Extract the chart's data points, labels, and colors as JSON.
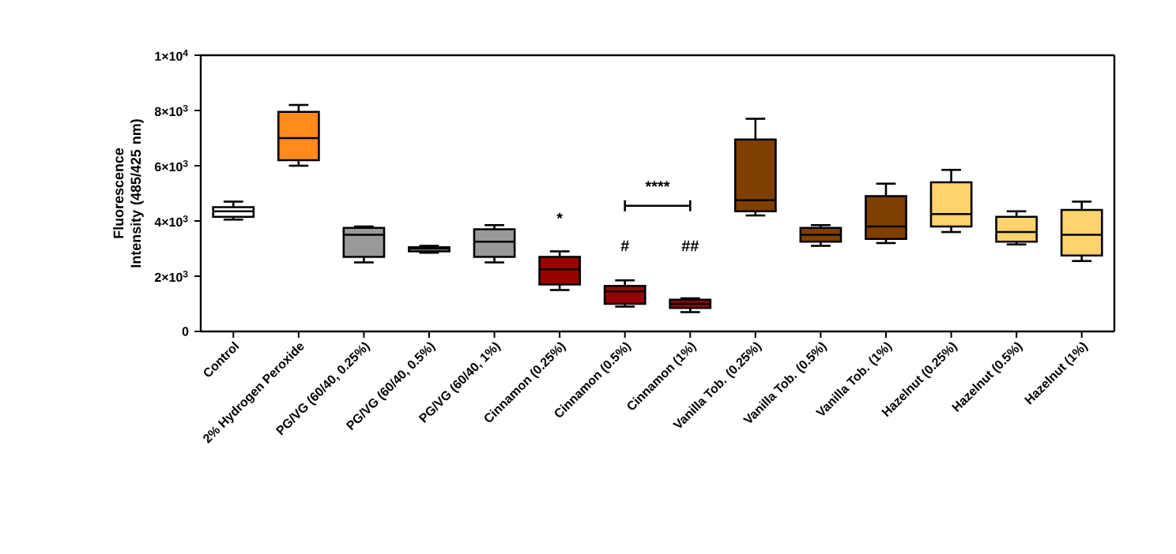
{
  "chart_data": {
    "type": "box",
    "ylabel": "Fluorescence Intensity (485/425 nm)",
    "categories": [
      "Control",
      "2% Hydrogen Peroxide",
      "PG/VG (60/40, 0.25%)",
      "PG/VG (60/40, 0.5%)",
      "PG/VG (60/40, 1%)",
      "Cinnamon (0.25%)",
      "Cinnamon (0.5%)",
      "Cinnamon (1%)",
      "Vanilla Tob. (0.25%)",
      "Vanilla Tob. (0.5%)",
      "Vanilla Tob. (1%)",
      "Hazelnut (0.25%)",
      "Hazelnut (0.5%)",
      "Hazelnut (1%)"
    ],
    "colors": [
      "#ffffff",
      "#ff8c1a",
      "#999999",
      "#999999",
      "#999999",
      "#990000",
      "#990000",
      "#990000",
      "#7f3f00",
      "#7f3f00",
      "#7f3f00",
      "#ffd36b",
      "#ffd36b",
      "#ffd36b"
    ],
    "boxes": [
      {
        "low": 4050,
        "q1": 4150,
        "median": 4350,
        "q3": 4500,
        "high": 4700
      },
      {
        "low": 6000,
        "q1": 6200,
        "median": 7000,
        "q3": 7950,
        "high": 8200
      },
      {
        "low": 2500,
        "q1": 2700,
        "median": 3500,
        "q3": 3750,
        "high": 3800
      },
      {
        "low": 2850,
        "q1": 2900,
        "median": 3000,
        "q3": 3050,
        "high": 3100
      },
      {
        "low": 2500,
        "q1": 2700,
        "median": 3250,
        "q3": 3700,
        "high": 3850
      },
      {
        "low": 1500,
        "q1": 1700,
        "median": 2250,
        "q3": 2700,
        "high": 2900
      },
      {
        "low": 900,
        "q1": 1000,
        "median": 1450,
        "q3": 1650,
        "high": 1850
      },
      {
        "low": 700,
        "q1": 850,
        "median": 1000,
        "q3": 1150,
        "high": 1200
      },
      {
        "low": 4200,
        "q1": 4350,
        "median": 4750,
        "q3": 6950,
        "high": 7700
      },
      {
        "low": 3100,
        "q1": 3250,
        "median": 3500,
        "q3": 3750,
        "high": 3850
      },
      {
        "low": 3200,
        "q1": 3350,
        "median": 3800,
        "q3": 4900,
        "high": 5350
      },
      {
        "low": 3600,
        "q1": 3800,
        "median": 4250,
        "q3": 5400,
        "high": 5850
      },
      {
        "low": 3150,
        "q1": 3250,
        "median": 3600,
        "q3": 4150,
        "high": 4350
      },
      {
        "low": 2550,
        "q1": 2750,
        "median": 3500,
        "q3": 4400,
        "high": 4700
      }
    ],
    "ylim": [
      0,
      10000
    ],
    "yticks": [
      0,
      {
        "value": 2000,
        "label": "2×10$^{3}$"
      },
      {
        "value": 4000,
        "label": "4×10$^{3}$"
      },
      {
        "value": 6000,
        "label": "6×10$^{3}$"
      },
      {
        "value": 8000,
        "label": "8×10$^{3}$"
      },
      {
        "value": 10000,
        "label": "1×10$^{4}$"
      }
    ],
    "annotations": [
      "*",
      "#",
      "##",
      "****"
    ]
  }
}
